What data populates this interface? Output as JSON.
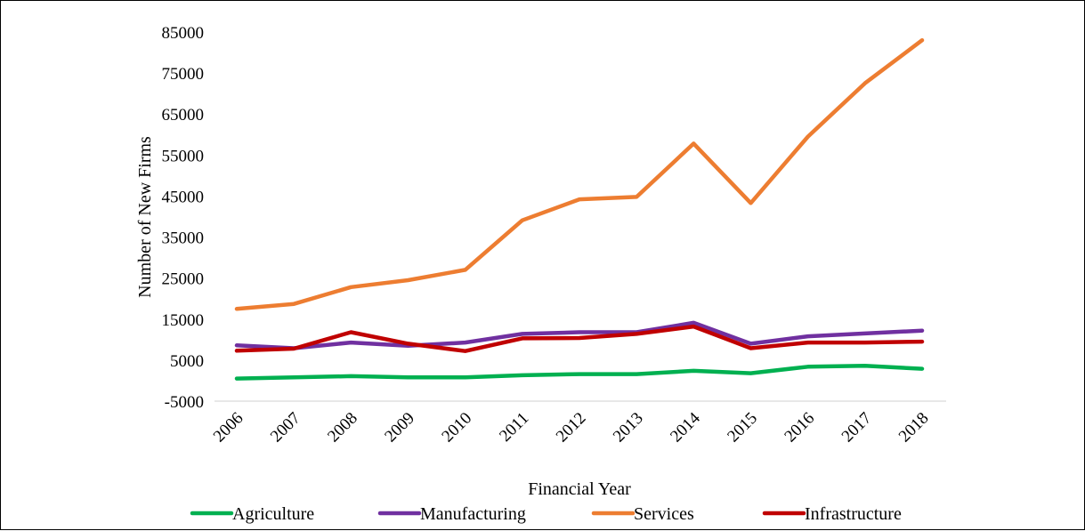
{
  "chart_data": {
    "type": "line",
    "title": "",
    "xlabel": "Financial Year",
    "ylabel": "Number of New Firms",
    "categories": [
      "2006",
      "2007",
      "2008",
      "2009",
      "2010",
      "2011",
      "2012",
      "2013",
      "2014",
      "2015",
      "2016",
      "2017",
      "2018"
    ],
    "ylim": [
      -5000,
      85000
    ],
    "yticks": [
      "85000",
      "75000",
      "65000",
      "55000",
      "45000",
      "35000",
      "25000",
      "15000",
      "5000",
      "-5000"
    ],
    "ytick_values": [
      85000,
      75000,
      65000,
      55000,
      45000,
      35000,
      25000,
      15000,
      5000,
      -5000
    ],
    "grid": false,
    "legend_position": "bottom",
    "series": [
      {
        "name": "Agriculture",
        "color": "#00B050",
        "values": [
          500,
          800,
          1100,
          800,
          800,
          1300,
          1600,
          1600,
          2400,
          1800,
          3400,
          3600,
          2900
        ]
      },
      {
        "name": "Manufacturing",
        "color": "#7030A0",
        "values": [
          8600,
          7900,
          9300,
          8500,
          9300,
          11400,
          11800,
          11800,
          14100,
          9000,
          10800,
          11500,
          12200
        ]
      },
      {
        "name": "Services",
        "color": "#ED7D31",
        "values": [
          17500,
          18700,
          22800,
          24500,
          27000,
          39100,
          44200,
          44800,
          57800,
          43300,
          59500,
          72500,
          83000
        ]
      },
      {
        "name": "Infrastructure",
        "color": "#C00000",
        "values": [
          7300,
          7800,
          11800,
          9000,
          7200,
          10300,
          10400,
          11400,
          13200,
          7900,
          9300,
          9300,
          9500
        ]
      }
    ]
  }
}
